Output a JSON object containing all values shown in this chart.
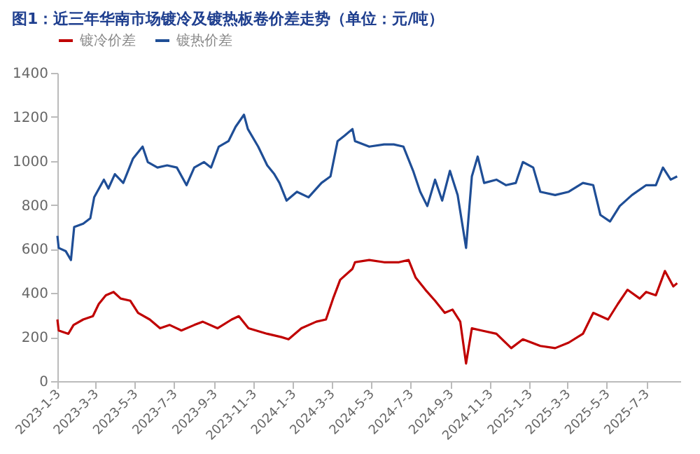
{
  "chart_data": {
    "type": "line",
    "title": "图1：近三年华南市场镀冷及镀热板卷价差走势（单位：元/吨）",
    "xlim": [
      "2023-01-03",
      "2025-08-25"
    ],
    "xticks": [
      {
        "value": "2023-01-03",
        "label": "2023-1-3"
      },
      {
        "value": "2023-03-03",
        "label": "2023-3-3"
      },
      {
        "value": "2023-05-03",
        "label": "2023-5-3"
      },
      {
        "value": "2023-07-03",
        "label": "2023-7-3"
      },
      {
        "value": "2023-09-03",
        "label": "2023-9-3"
      },
      {
        "value": "2023-11-03",
        "label": "2023-11-3"
      },
      {
        "value": "2024-01-03",
        "label": "2024-1-3"
      },
      {
        "value": "2024-03-03",
        "label": "2024-3-3"
      },
      {
        "value": "2024-05-03",
        "label": "2024-5-3"
      },
      {
        "value": "2024-07-03",
        "label": "2024-7-3"
      },
      {
        "value": "2024-09-03",
        "label": "2024-9-3"
      },
      {
        "value": "2024-11-03",
        "label": "2024-11-3"
      },
      {
        "value": "2025-01-03",
        "label": "2025-1-3"
      },
      {
        "value": "2025-03-03",
        "label": "2025-3-3"
      },
      {
        "value": "2025-05-03",
        "label": "2025-5-3"
      },
      {
        "value": "2025-07-03",
        "label": "2025-7-3"
      }
    ],
    "ylim": [
      0,
      1400
    ],
    "yticks": [
      0,
      200,
      400,
      600,
      800,
      1000,
      1200,
      1400
    ],
    "grid": false,
    "legend": "top",
    "marker": "none",
    "line_style": "solid",
    "series": [
      {
        "name": "镀冷价差",
        "color": "#c00000",
        "x": [
          "2023-01-03",
          "2023-01-05",
          "2023-01-20",
          "2023-01-28",
          "2023-02-12",
          "2023-02-27",
          "2023-03-08",
          "2023-03-19",
          "2023-03-31",
          "2023-04-11",
          "2023-04-26",
          "2023-05-08",
          "2023-05-26",
          "2023-06-11",
          "2023-06-26",
          "2023-07-14",
          "2023-08-03",
          "2023-08-16",
          "2023-09-08",
          "2023-09-30",
          "2023-10-11",
          "2023-10-26",
          "2023-11-24",
          "2023-12-16",
          "2023-12-27",
          "2024-01-16",
          "2024-02-08",
          "2024-02-23",
          "2024-03-05",
          "2024-03-16",
          "2024-04-04",
          "2024-04-08",
          "2024-04-30",
          "2024-05-23",
          "2024-06-15",
          "2024-06-30",
          "2024-07-11",
          "2024-07-26",
          "2024-08-10",
          "2024-08-25",
          "2024-09-06",
          "2024-09-18",
          "2024-09-27",
          "2024-10-06",
          "2024-10-21",
          "2024-11-13",
          "2024-12-06",
          "2024-12-24",
          "2025-01-20",
          "2025-02-12",
          "2025-03-05",
          "2025-03-27",
          "2025-04-12",
          "2025-05-05",
          "2025-05-20",
          "2025-06-04",
          "2025-06-23",
          "2025-07-03",
          "2025-07-18",
          "2025-08-01",
          "2025-08-14",
          "2025-08-20"
        ],
        "values": [
          280,
          230,
          215,
          255,
          280,
          295,
          350,
          390,
          405,
          375,
          365,
          310,
          280,
          240,
          255,
          230,
          255,
          270,
          240,
          280,
          295,
          240,
          215,
          200,
          190,
          240,
          270,
          280,
          375,
          460,
          510,
          540,
          550,
          540,
          540,
          550,
          470,
          415,
          365,
          310,
          325,
          270,
          80,
          240,
          230,
          215,
          150,
          190,
          160,
          150,
          175,
          215,
          310,
          280,
          350,
          415,
          375,
          405,
          390,
          500,
          430,
          445
        ]
      },
      {
        "name": "镀热价差",
        "color": "#1f4e96",
        "x": [
          "2023-01-03",
          "2023-01-05",
          "2023-01-16",
          "2023-01-24",
          "2023-01-29",
          "2023-02-12",
          "2023-02-23",
          "2023-03-01",
          "2023-03-16",
          "2023-03-23",
          "2023-04-02",
          "2023-04-15",
          "2023-04-30",
          "2023-05-15",
          "2023-05-23",
          "2023-06-07",
          "2023-06-22",
          "2023-07-07",
          "2023-07-22",
          "2023-08-03",
          "2023-08-18",
          "2023-08-29",
          "2023-09-10",
          "2023-09-25",
          "2023-10-06",
          "2023-10-19",
          "2023-10-25",
          "2023-11-10",
          "2023-11-24",
          "2023-12-05",
          "2023-12-13",
          "2023-12-24",
          "2024-01-09",
          "2024-01-27",
          "2024-02-16",
          "2024-03-01",
          "2024-03-12",
          "2024-03-23",
          "2024-04-04",
          "2024-04-08",
          "2024-04-30",
          "2024-05-23",
          "2024-06-07",
          "2024-06-22",
          "2024-07-07",
          "2024-07-18",
          "2024-07-29",
          "2024-08-10",
          "2024-08-21",
          "2024-09-02",
          "2024-09-14",
          "2024-09-27",
          "2024-10-06",
          "2024-10-15",
          "2024-10-25",
          "2024-11-13",
          "2024-11-28",
          "2024-12-13",
          "2024-12-24",
          "2025-01-09",
          "2025-01-20",
          "2025-02-12",
          "2025-03-05",
          "2025-03-27",
          "2025-04-12",
          "2025-04-23",
          "2025-05-08",
          "2025-05-23",
          "2025-06-11",
          "2025-07-03",
          "2025-07-18",
          "2025-07-29",
          "2025-08-10",
          "2025-08-20"
        ],
        "values": [
          660,
          605,
          590,
          550,
          700,
          715,
          740,
          835,
          915,
          875,
          940,
          900,
          1010,
          1065,
          995,
          970,
          980,
          970,
          890,
          970,
          995,
          970,
          1065,
          1090,
          1155,
          1210,
          1145,
          1065,
          980,
          940,
          900,
          820,
          860,
          835,
          900,
          930,
          1090,
          1115,
          1145,
          1090,
          1065,
          1075,
          1075,
          1065,
          955,
          860,
          795,
          915,
          820,
          955,
          845,
          605,
          930,
          1020,
          900,
          915,
          890,
          900,
          995,
          970,
          860,
          845,
          860,
          900,
          890,
          755,
          725,
          795,
          845,
          890,
          890,
          970,
          915,
          930
        ]
      }
    ]
  }
}
